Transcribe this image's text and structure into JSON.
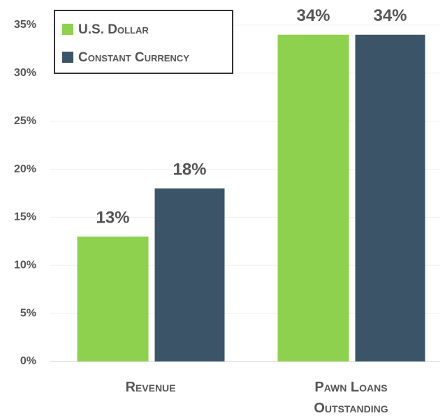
{
  "chart_data": {
    "type": "bar",
    "categories": [
      "Revenue",
      "Pawn Loans Outstanding"
    ],
    "series": [
      {
        "name": "U.S. Dollar",
        "color": "#8dd14f",
        "values": [
          13,
          34
        ],
        "value_labels": [
          "13%",
          "34%"
        ]
      },
      {
        "name": "Constant Currency",
        "color": "#3b5468",
        "values": [
          18,
          34
        ],
        "value_labels": [
          "18%",
          "34%"
        ]
      }
    ],
    "ylim": [
      0,
      35
    ],
    "yticks": [
      {
        "value": 0,
        "label": "0%"
      },
      {
        "value": 5,
        "label": "5%"
      },
      {
        "value": 10,
        "label": "10%"
      },
      {
        "value": 15,
        "label": "15%"
      },
      {
        "value": 20,
        "label": "20%"
      },
      {
        "value": 25,
        "label": "25%"
      },
      {
        "value": 30,
        "label": "30%"
      },
      {
        "value": 35,
        "label": "35%"
      }
    ],
    "grid": true,
    "legend": "top-left"
  }
}
